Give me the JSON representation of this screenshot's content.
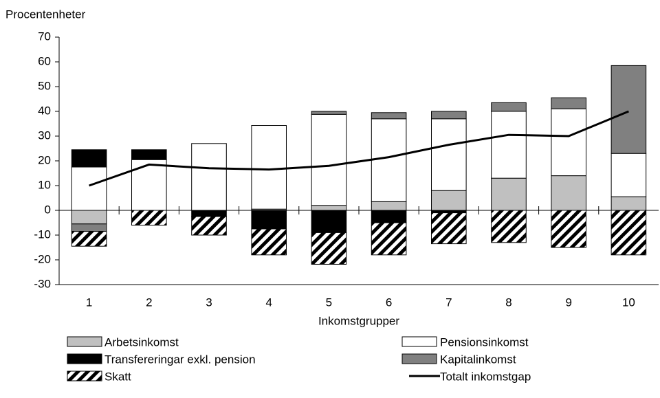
{
  "chart_data": {
    "type": "bar",
    "stacked": true,
    "y_label": "Procentenheter",
    "x_label": "Inkomstgrupper",
    "categories": [
      "1",
      "2",
      "3",
      "4",
      "5",
      "6",
      "7",
      "8",
      "9",
      "10"
    ],
    "series": [
      {
        "name": "Arbetsinkomst",
        "color": "#c0c0c0",
        "values": [
          -5.5,
          0,
          0,
          0.5,
          2,
          3.5,
          8,
          13,
          14,
          5.5
        ]
      },
      {
        "name": "Pensionsinkomst",
        "color": "#ffffff",
        "values": [
          17.5,
          20.5,
          27,
          33.8,
          36.8,
          33.5,
          29,
          27,
          27,
          17.5
        ]
      },
      {
        "name": "Transfereringar exkl. pension",
        "color": "#000000",
        "values": [
          7,
          4,
          -2.5,
          -7.5,
          -9,
          -5,
          -1,
          0,
          0,
          0
        ]
      },
      {
        "name": "Kapitalinkomst",
        "color": "#808080",
        "values": [
          -3,
          0,
          0,
          0,
          1.2,
          2.5,
          3,
          3.5,
          4.5,
          35.5
        ]
      },
      {
        "name": "Skatt",
        "color": "#000000",
        "pattern": "hatch",
        "values": [
          -6,
          -6,
          -7.5,
          -10.5,
          -12.8,
          -13,
          -12.5,
          -13,
          -15,
          -18
        ]
      }
    ],
    "line": {
      "name": "Totalt inkomstgap",
      "color": "#000000",
      "values": [
        10,
        18.5,
        17,
        16.5,
        18,
        21.5,
        26.5,
        30.5,
        30,
        40
      ]
    },
    "ylim": [
      -30,
      70
    ],
    "yticks": [
      -30,
      -20,
      -10,
      0,
      10,
      20,
      30,
      40,
      50,
      60,
      70
    ]
  }
}
